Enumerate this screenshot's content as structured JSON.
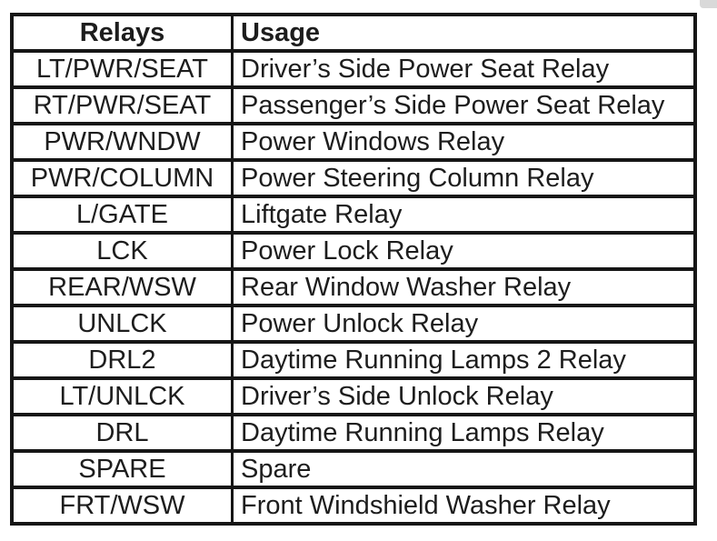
{
  "table": {
    "columns": [
      "Relays",
      "Usage"
    ],
    "rows": [
      {
        "relay": "LT/PWR/SEAT",
        "usage": "Driver’s Side Power Seat Relay"
      },
      {
        "relay": "RT/PWR/SEAT",
        "usage": "Passenger’s Side Power Seat Relay"
      },
      {
        "relay": "PWR/WNDW",
        "usage": "Power Windows Relay"
      },
      {
        "relay": "PWR/COLUMN",
        "usage": "Power Steering Column Relay"
      },
      {
        "relay": "L/GATE",
        "usage": "Liftgate Relay"
      },
      {
        "relay": "LCK",
        "usage": "Power Lock Relay"
      },
      {
        "relay": "REAR/WSW",
        "usage": "Rear Window Washer Relay"
      },
      {
        "relay": "UNLCK",
        "usage": "Power Unlock Relay"
      },
      {
        "relay": "DRL2",
        "usage": "Daytime Running Lamps 2 Relay"
      },
      {
        "relay": "LT/UNLCK",
        "usage": "Driver’s Side Unlock Relay"
      },
      {
        "relay": "DRL",
        "usage": "Daytime Running Lamps Relay"
      },
      {
        "relay": "SPARE",
        "usage": "Spare"
      },
      {
        "relay": "FRT/WSW",
        "usage": "Front Windshield Washer Relay"
      }
    ],
    "colors": {
      "border": "#161616",
      "text": "#1d1d1d",
      "background": "#ffffff"
    }
  }
}
